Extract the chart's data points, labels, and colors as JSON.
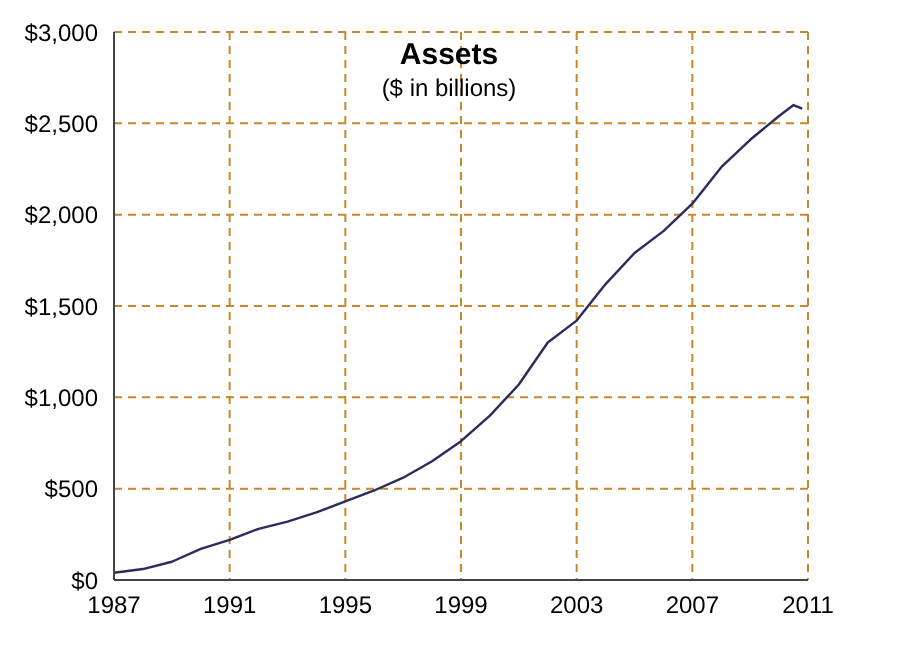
{
  "chart_data": {
    "type": "line",
    "title": "Assets",
    "subtitle": "($ in billions)",
    "x": [
      1987,
      1988,
      1989,
      1990,
      1991,
      1992,
      1993,
      1994,
      1995,
      1996,
      1997,
      1998,
      1999,
      2000,
      2001,
      2002,
      2003,
      2004,
      2005,
      2006,
      2007,
      2008,
      2009,
      2010,
      2010.5,
      2010.8
    ],
    "series": [
      {
        "color": "#2b2b5e",
        "values": [
          40,
          60,
          100,
          170,
          220,
          280,
          320,
          370,
          430,
          490,
          560,
          650,
          760,
          900,
          1070,
          1300,
          1420,
          1620,
          1790,
          1910,
          2060,
          2260,
          2410,
          2540,
          2600,
          2580
        ]
      }
    ],
    "xlim": [
      1987,
      2011
    ],
    "xticks": [
      1987,
      1991,
      1995,
      1999,
      2003,
      2007,
      2011
    ],
    "ylim": [
      0,
      3000
    ],
    "yticks": [
      {
        "value": 0,
        "label": "$0"
      },
      {
        "value": 500,
        "label": "$500"
      },
      {
        "value": 1000,
        "label": "$1,000"
      },
      {
        "value": 1500,
        "label": "$1,500"
      },
      {
        "value": 2000,
        "label": "$2,000"
      },
      {
        "value": 2500,
        "label": "$2,500"
      },
      {
        "value": 3000,
        "label": "$3,000"
      }
    ],
    "grid": true,
    "marker": "none",
    "line_style": "solid"
  }
}
